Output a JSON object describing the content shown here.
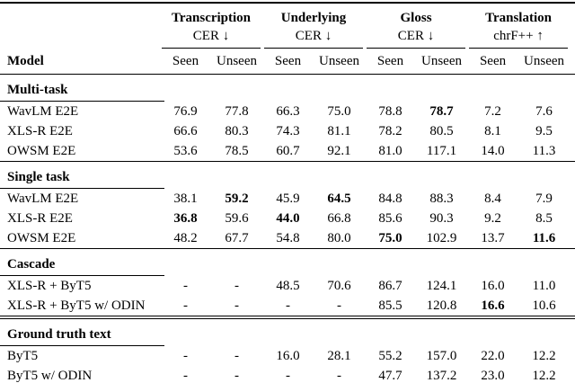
{
  "table": {
    "model_header": "Model",
    "groups": [
      {
        "name": "Transcription",
        "metric": "CER ↓",
        "sub": [
          "Seen",
          "Unseen"
        ]
      },
      {
        "name": "Underlying",
        "metric": "CER ↓",
        "sub": [
          "Seen",
          "Unseen"
        ]
      },
      {
        "name": "Gloss",
        "metric": "CER ↓",
        "sub": [
          "Seen",
          "Unseen"
        ]
      },
      {
        "name": "Translation",
        "metric": "chrF++ ↑",
        "sub": [
          "Seen",
          "Unseen"
        ]
      }
    ],
    "sections": [
      {
        "title": "Multi-task",
        "rule_above": "single",
        "rows": [
          {
            "model": "WavLM E2E",
            "values": [
              "76.9",
              "77.8",
              "66.3",
              "75.0",
              "78.8",
              "78.7",
              "7.2",
              "7.6"
            ],
            "bold": [
              5
            ]
          },
          {
            "model": "XLS-R E2E",
            "values": [
              "66.6",
              "80.3",
              "74.3",
              "81.1",
              "78.2",
              "80.5",
              "8.1",
              "9.5"
            ],
            "bold": []
          },
          {
            "model": "OWSM E2E",
            "values": [
              "53.6",
              "78.5",
              "60.7",
              "92.1",
              "81.0",
              "117.1",
              "14.0",
              "11.3"
            ],
            "bold": []
          }
        ]
      },
      {
        "title": "Single task",
        "rule_above": "single",
        "rows": [
          {
            "model": "WavLM E2E",
            "values": [
              "38.1",
              "59.2",
              "45.9",
              "64.5",
              "84.8",
              "88.3",
              "8.4",
              "7.9"
            ],
            "bold": [
              1,
              3
            ]
          },
          {
            "model": "XLS-R E2E",
            "values": [
              "36.8",
              "59.6",
              "44.0",
              "66.8",
              "85.6",
              "90.3",
              "9.2",
              "8.5"
            ],
            "bold": [
              0,
              2
            ]
          },
          {
            "model": "OWSM E2E",
            "values": [
              "48.2",
              "67.7",
              "54.8",
              "80.0",
              "75.0",
              "102.9",
              "13.7",
              "11.6"
            ],
            "bold": [
              4,
              7
            ]
          }
        ]
      },
      {
        "title": "Cascade",
        "rule_above": "single",
        "rows": [
          {
            "model": "XLS-R + ByT5",
            "values": [
              "-",
              "-",
              "48.5",
              "70.6",
              "86.7",
              "124.1",
              "16.0",
              "11.0"
            ],
            "bold": []
          },
          {
            "model": "XLS-R + ByT5 w/ ODIN",
            "values": [
              "-",
              "-",
              "-",
              "-",
              "85.5",
              "120.8",
              "16.6",
              "10.6"
            ],
            "bold": [
              6
            ]
          }
        ]
      },
      {
        "title": "Ground truth text",
        "rule_above": "double",
        "rows": [
          {
            "model": "ByT5",
            "values": [
              "-",
              "-",
              "16.0",
              "28.1",
              "55.2",
              "157.0",
              "22.0",
              "12.2"
            ],
            "bold": []
          },
          {
            "model": "ByT5 w/ ODIN",
            "values": [
              "-",
              "-",
              "-",
              "-",
              "47.7",
              "137.2",
              "23.0",
              "12.2"
            ],
            "bold": []
          }
        ]
      }
    ]
  }
}
